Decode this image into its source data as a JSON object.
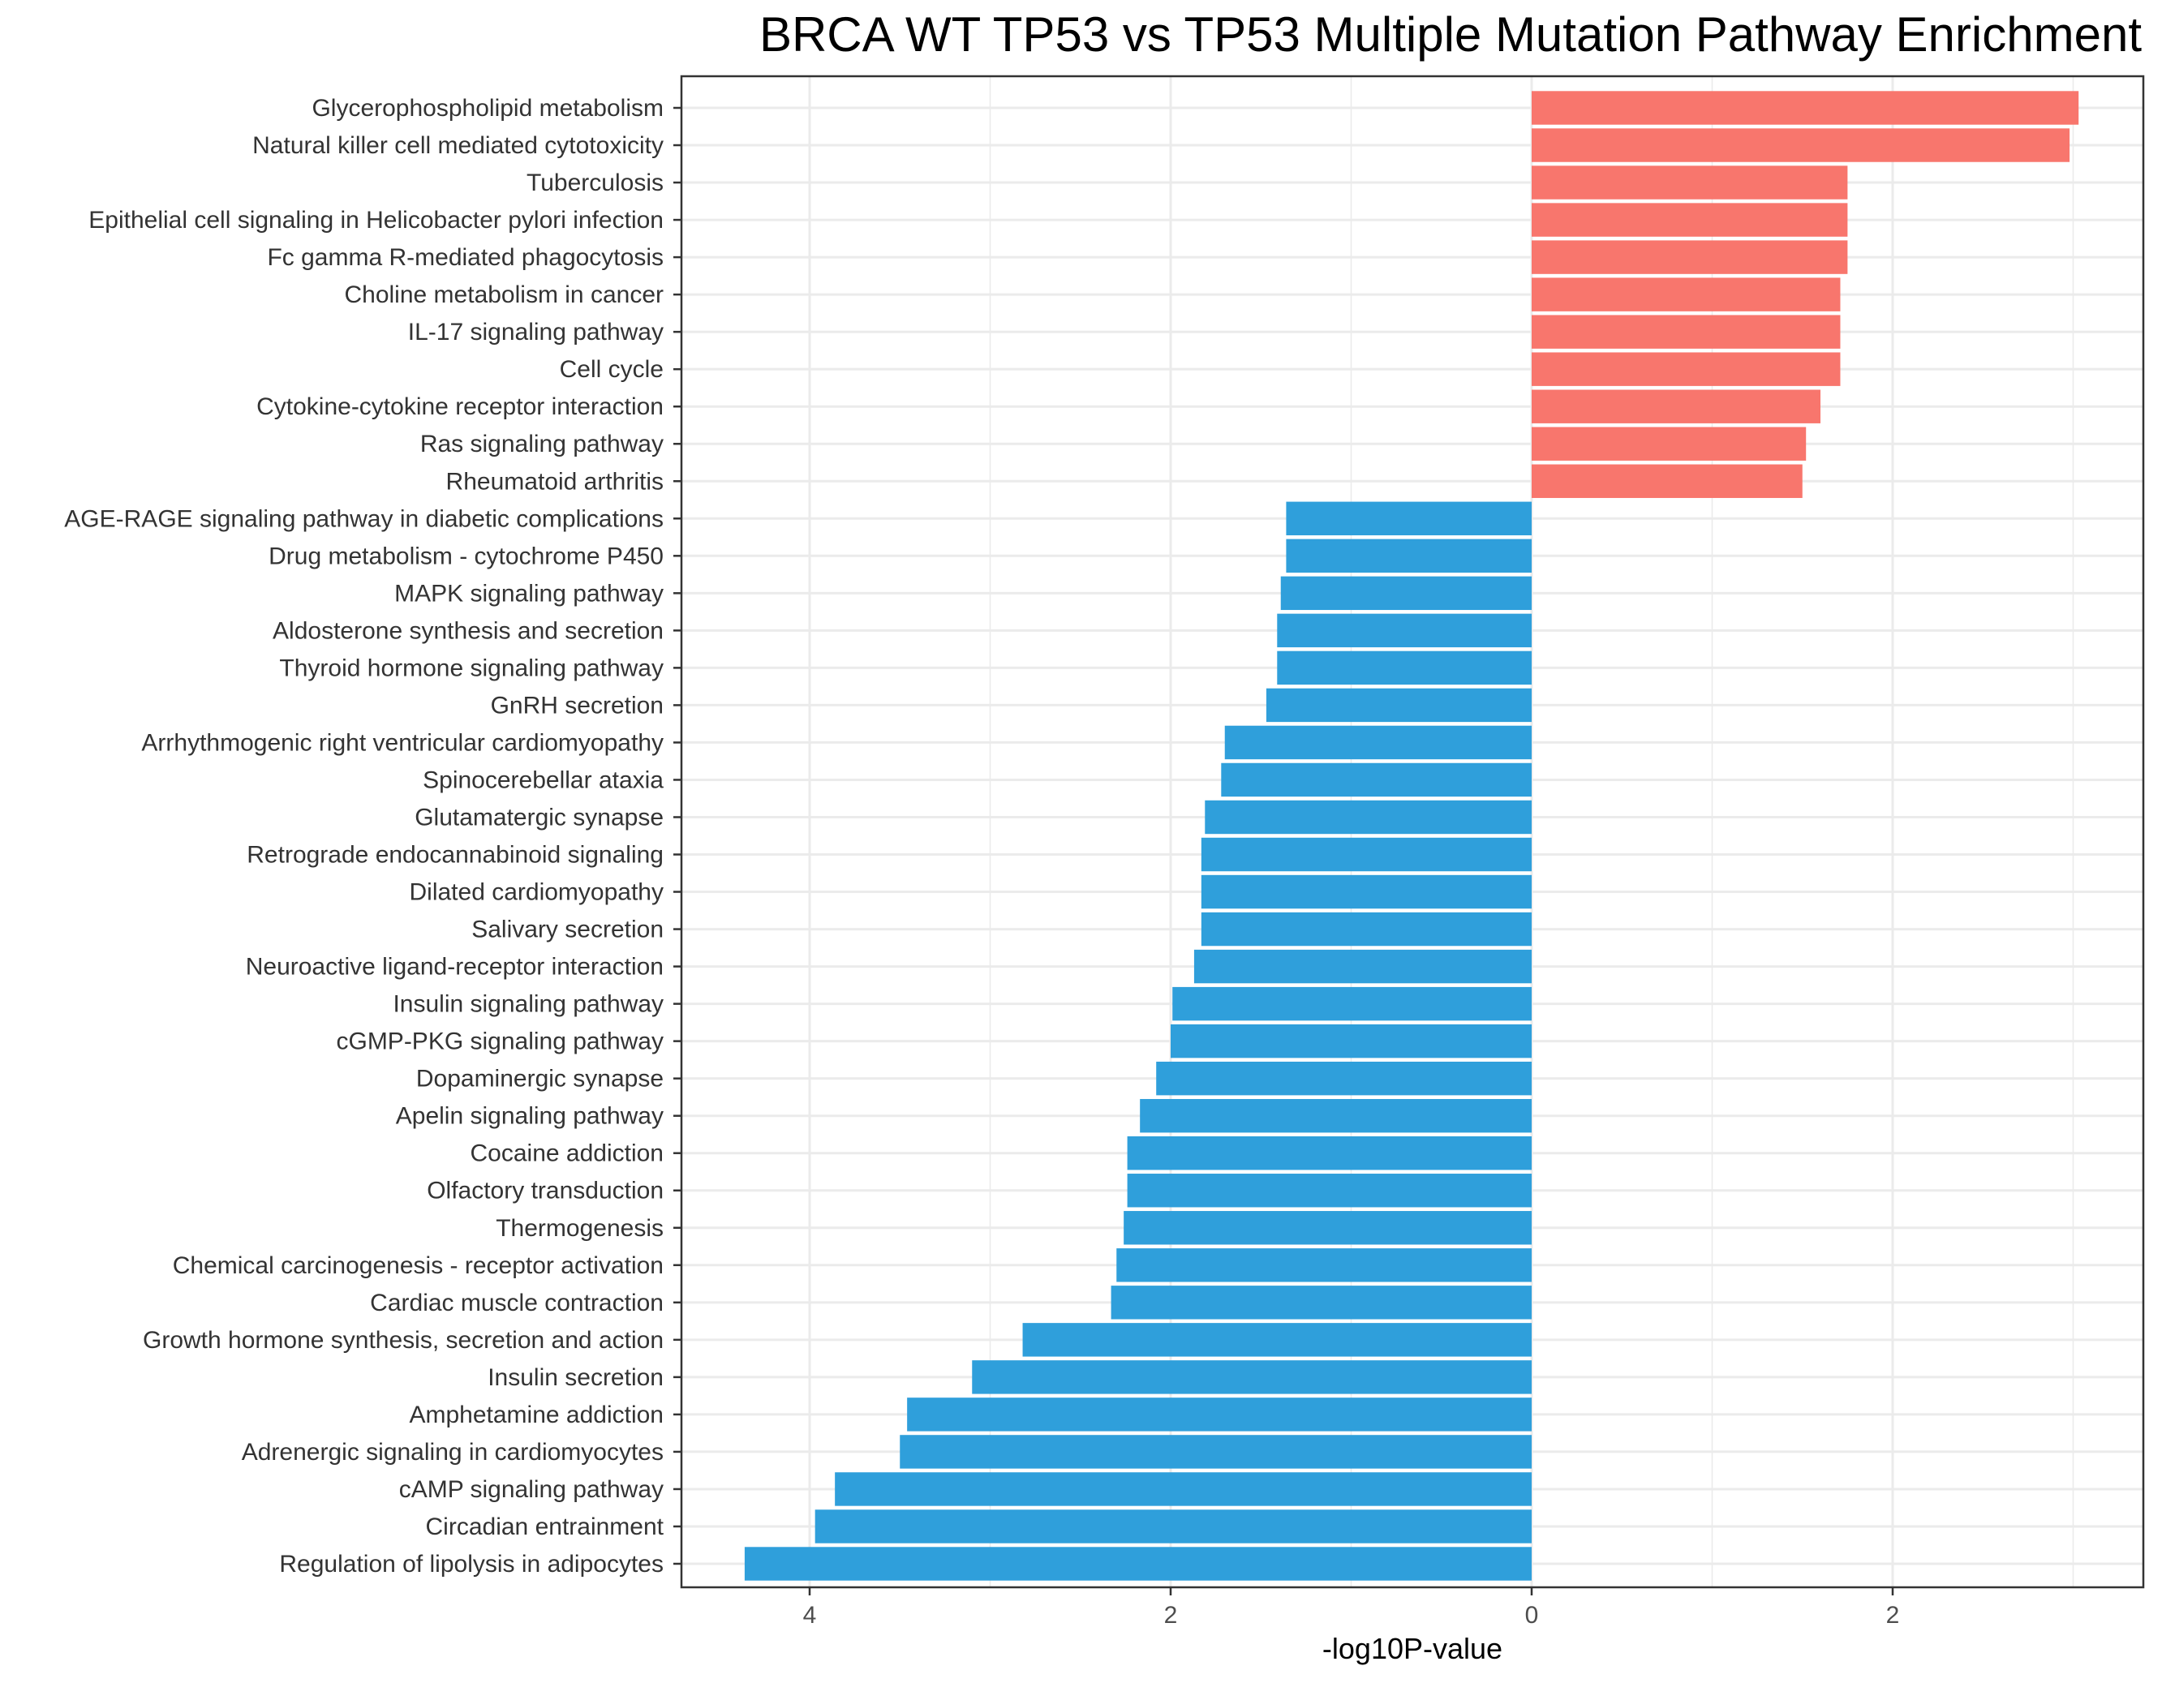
{
  "chart_data": {
    "type": "bar",
    "orientation": "horizontal",
    "title": "BRCA WT TP53 vs TP53 Multiple Mutation Pathway Enrichment",
    "xlabel": "-log10P-value",
    "ylabel": "",
    "x_axis_reversed_for_negative": true,
    "xlim": [
      -4.38,
      3.17
    ],
    "x_ticks": [
      {
        "value": -4,
        "label": "4"
      },
      {
        "value": -2,
        "label": "2"
      },
      {
        "value": 0,
        "label": "0"
      },
      {
        "value": 2,
        "label": "2"
      }
    ],
    "grid": true,
    "legend": "none",
    "colors": {
      "up": "#F8766D",
      "down": "#2F9FDB"
    },
    "bars": [
      {
        "label": "Glycerophospholipid metabolism",
        "value": 3.03,
        "group": "up"
      },
      {
        "label": "Natural killer cell mediated cytotoxicity",
        "value": 2.98,
        "group": "up"
      },
      {
        "label": "Tuberculosis",
        "value": 1.75,
        "group": "up"
      },
      {
        "label": "Epithelial cell signaling in Helicobacter pylori infection",
        "value": 1.75,
        "group": "up"
      },
      {
        "label": "Fc gamma R-mediated phagocytosis",
        "value": 1.75,
        "group": "up"
      },
      {
        "label": "Choline metabolism in cancer",
        "value": 1.71,
        "group": "up"
      },
      {
        "label": "IL-17 signaling pathway",
        "value": 1.71,
        "group": "up"
      },
      {
        "label": "Cell cycle",
        "value": 1.71,
        "group": "up"
      },
      {
        "label": "Cytokine-cytokine receptor interaction",
        "value": 1.6,
        "group": "up"
      },
      {
        "label": "Ras signaling pathway",
        "value": 1.52,
        "group": "up"
      },
      {
        "label": "Rheumatoid arthritis",
        "value": 1.5,
        "group": "up"
      },
      {
        "label": "AGE-RAGE signaling pathway in diabetic complications",
        "value": -1.36,
        "group": "down"
      },
      {
        "label": "Drug metabolism - cytochrome P450",
        "value": -1.36,
        "group": "down"
      },
      {
        "label": "MAPK signaling pathway",
        "value": -1.39,
        "group": "down"
      },
      {
        "label": "Aldosterone synthesis and secretion",
        "value": -1.41,
        "group": "down"
      },
      {
        "label": "Thyroid hormone signaling pathway",
        "value": -1.41,
        "group": "down"
      },
      {
        "label": "GnRH secretion",
        "value": -1.47,
        "group": "down"
      },
      {
        "label": "Arrhythmogenic right ventricular cardiomyopathy",
        "value": -1.7,
        "group": "down"
      },
      {
        "label": "Spinocerebellar ataxia",
        "value": -1.72,
        "group": "down"
      },
      {
        "label": "Glutamatergic synapse",
        "value": -1.81,
        "group": "down"
      },
      {
        "label": "Retrograde endocannabinoid signaling",
        "value": -1.83,
        "group": "down"
      },
      {
        "label": "Dilated cardiomyopathy",
        "value": -1.83,
        "group": "down"
      },
      {
        "label": "Salivary secretion",
        "value": -1.83,
        "group": "down"
      },
      {
        "label": "Neuroactive ligand-receptor interaction",
        "value": -1.87,
        "group": "down"
      },
      {
        "label": "Insulin signaling pathway",
        "value": -1.99,
        "group": "down"
      },
      {
        "label": "cGMP-PKG signaling pathway",
        "value": -2.0,
        "group": "down"
      },
      {
        "label": "Dopaminergic synapse",
        "value": -2.08,
        "group": "down"
      },
      {
        "label": "Apelin signaling pathway",
        "value": -2.17,
        "group": "down"
      },
      {
        "label": "Cocaine addiction",
        "value": -2.24,
        "group": "down"
      },
      {
        "label": "Olfactory transduction",
        "value": -2.24,
        "group": "down"
      },
      {
        "label": "Thermogenesis",
        "value": -2.26,
        "group": "down"
      },
      {
        "label": "Chemical carcinogenesis - receptor activation",
        "value": -2.3,
        "group": "down"
      },
      {
        "label": "Cardiac muscle contraction",
        "value": -2.33,
        "group": "down"
      },
      {
        "label": "Growth hormone synthesis, secretion and action",
        "value": -2.82,
        "group": "down"
      },
      {
        "label": "Insulin secretion",
        "value": -3.1,
        "group": "down"
      },
      {
        "label": "Amphetamine addiction",
        "value": -3.46,
        "group": "down"
      },
      {
        "label": "Adrenergic signaling in cardiomyocytes",
        "value": -3.5,
        "group": "down"
      },
      {
        "label": "cAMP signaling pathway",
        "value": -3.86,
        "group": "down"
      },
      {
        "label": "Circadian entrainment",
        "value": -3.97,
        "group": "down"
      },
      {
        "label": "Regulation of lipolysis in adipocytes",
        "value": -4.36,
        "group": "down"
      }
    ]
  }
}
